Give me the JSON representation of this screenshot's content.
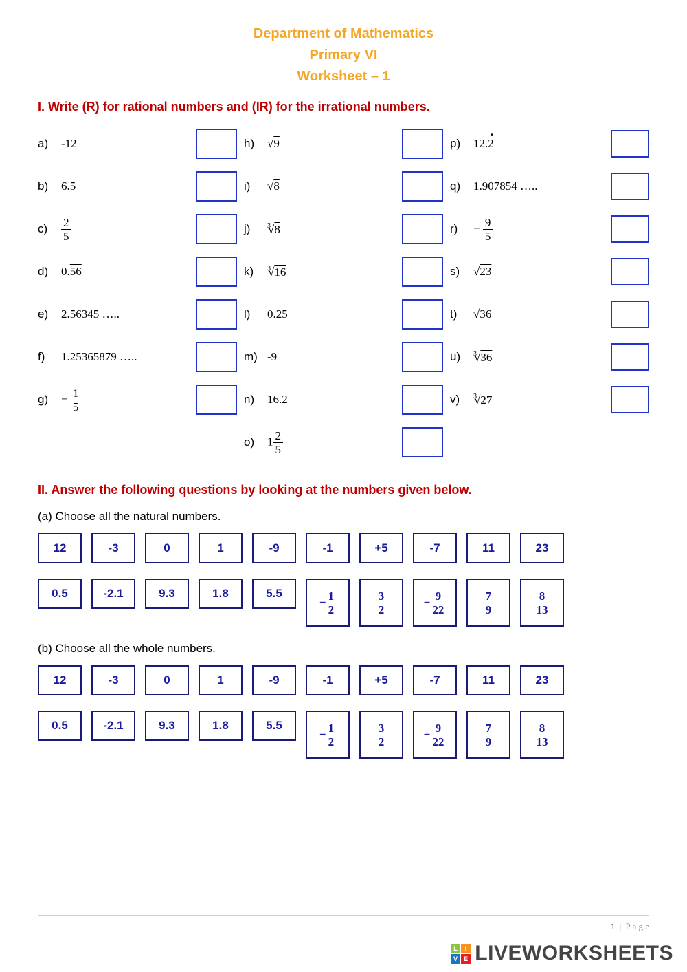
{
  "colors": {
    "header_text": "#f5a623",
    "section_title": "#C00000",
    "answer_box_border": "#2233cc",
    "choice_border": "#1a1a7a",
    "choice_text": "#1a1a9a",
    "page_bg": "#ffffff",
    "footer_muted": "#888888"
  },
  "header": {
    "line1": "Department of Mathematics",
    "line2": "Primary VI",
    "line3": "Worksheet – 1"
  },
  "sectionI": {
    "title": "I.  Write (R) for rational numbers and (IR) for the irrational numbers.",
    "col1": [
      {
        "label": "a)",
        "type": "text",
        "value": "-12"
      },
      {
        "label": "b)",
        "type": "text",
        "value": "6.5"
      },
      {
        "label": "c)",
        "type": "frac",
        "num": "2",
        "den": "5"
      },
      {
        "label": "d)",
        "type": "repeat",
        "prefix": "0.",
        "rep": "56"
      },
      {
        "label": "e)",
        "type": "text",
        "value": "2.56345 ….."
      },
      {
        "label": "f)",
        "type": "text",
        "value": "1.25365879 ….."
      },
      {
        "label": "g)",
        "type": "negfrac",
        "num": "1",
        "den": "5"
      }
    ],
    "col2": [
      {
        "label": "h)",
        "type": "sqrt",
        "rad": "9"
      },
      {
        "label": "i)",
        "type": "sqrt",
        "rad": "8"
      },
      {
        "label": "j)",
        "type": "nroot",
        "idx": "3",
        "rad": "8"
      },
      {
        "label": "k)",
        "type": "nroot",
        "idx": "3",
        "rad": "16"
      },
      {
        "label": "l)",
        "type": "repeat",
        "prefix": "0.",
        "rep": "25"
      },
      {
        "label": "m)",
        "type": "text",
        "value": "-9"
      },
      {
        "label": "n)",
        "type": "text",
        "value": "16.2"
      },
      {
        "label": "o)",
        "type": "mixed",
        "whole": "1",
        "num": "2",
        "den": "5"
      }
    ],
    "col3": [
      {
        "label": "p)",
        "type": "dotrepeat",
        "prefix": "12.",
        "rep": "2"
      },
      {
        "label": "q)",
        "type": "text",
        "value": "1.907854 ….."
      },
      {
        "label": "r)",
        "type": "negfrac",
        "num": "9",
        "den": "5"
      },
      {
        "label": "s)",
        "type": "sqrt",
        "rad": "23"
      },
      {
        "label": "t)",
        "type": "sqrt",
        "rad": "36"
      },
      {
        "label": "u)",
        "type": "nroot",
        "idx": "3",
        "rad": "36"
      },
      {
        "label": "v)",
        "type": "nroot",
        "idx": "3",
        "rad": "27"
      }
    ]
  },
  "sectionII": {
    "title": "II. Answer the following questions by looking at the numbers given below.",
    "subA": {
      "prompt": "(a) Choose all the natural numbers."
    },
    "subB": {
      "prompt": "(b) Choose all the whole numbers."
    },
    "row1": [
      {
        "type": "text",
        "value": "12"
      },
      {
        "type": "text",
        "value": "-3"
      },
      {
        "type": "text",
        "value": "0"
      },
      {
        "type": "text",
        "value": "1"
      },
      {
        "type": "text",
        "value": "-9"
      },
      {
        "type": "text",
        "value": "-1"
      },
      {
        "type": "text",
        "value": "+5"
      },
      {
        "type": "text",
        "value": "-7"
      },
      {
        "type": "text",
        "value": "11"
      },
      {
        "type": "text",
        "value": "23"
      }
    ],
    "row2": [
      {
        "type": "text",
        "value": "0.5"
      },
      {
        "type": "text",
        "value": "-2.1"
      },
      {
        "type": "text",
        "value": "9.3"
      },
      {
        "type": "text",
        "value": "1.8"
      },
      {
        "type": "text",
        "value": "5.5"
      },
      {
        "type": "negfrac",
        "num": "1",
        "den": "2"
      },
      {
        "type": "frac",
        "num": "3",
        "den": "2"
      },
      {
        "type": "negfrac",
        "num": "9",
        "den": "22"
      },
      {
        "type": "frac",
        "num": "7",
        "den": "9"
      },
      {
        "type": "frac",
        "num": "8",
        "den": "13"
      }
    ]
  },
  "footer": {
    "page_num": "1",
    "sep": "|",
    "page_word": "P a g e"
  },
  "brand": {
    "text": "LIVEWORKSHEETS",
    "badge_colors": [
      "#8cc63f",
      "#f7931e",
      "#1b75bb",
      "#ed1c24"
    ],
    "badge_letters": [
      "L",
      "I",
      "V",
      "E"
    ]
  }
}
